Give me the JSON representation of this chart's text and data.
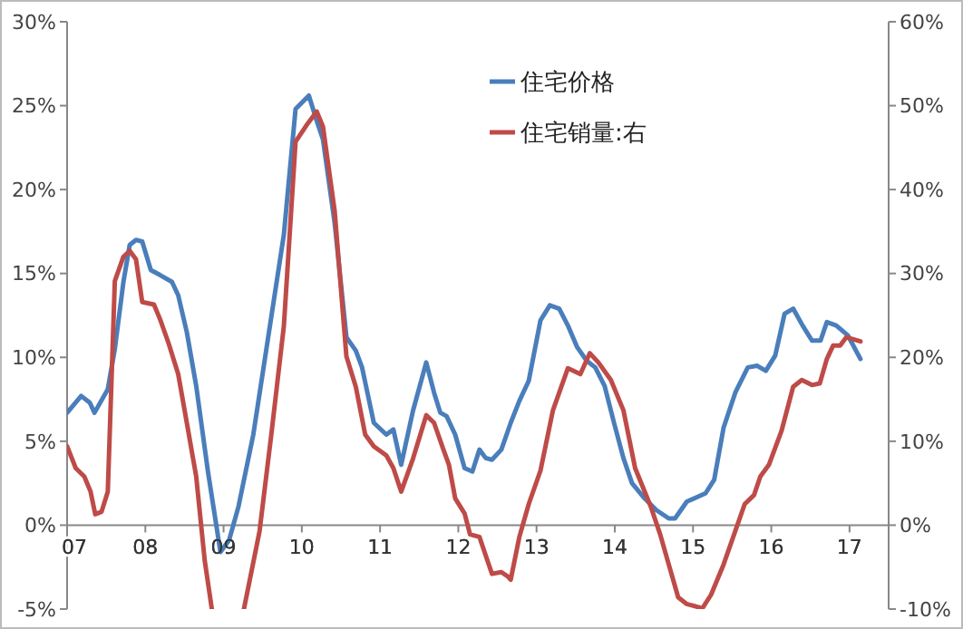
{
  "chart_data": {
    "type": "line",
    "xlim": [
      2007,
      2017.5
    ],
    "xticks": [
      {
        "value": 2007,
        "label": "07"
      },
      {
        "value": 2008,
        "label": "08"
      },
      {
        "value": 2009,
        "label": "09"
      },
      {
        "value": 2010,
        "label": "10"
      },
      {
        "value": 2011,
        "label": "11"
      },
      {
        "value": 2012,
        "label": "12"
      },
      {
        "value": 2013,
        "label": "13"
      },
      {
        "value": 2014,
        "label": "14"
      },
      {
        "value": 2015,
        "label": "15"
      },
      {
        "value": 2016,
        "label": "16"
      },
      {
        "value": 2017,
        "label": "17"
      }
    ],
    "ylim": [
      -5,
      30
    ],
    "yticks": [
      {
        "value": -5,
        "label": "-5%"
      },
      {
        "value": 0,
        "label": "0%"
      },
      {
        "value": 5,
        "label": "5%"
      },
      {
        "value": 10,
        "label": "10%"
      },
      {
        "value": 15,
        "label": "15%"
      },
      {
        "value": 20,
        "label": "20%"
      },
      {
        "value": 25,
        "label": "25%"
      },
      {
        "value": 30,
        "label": "30%"
      }
    ],
    "y2lim": [
      -10,
      60
    ],
    "y2ticks": [
      {
        "value": -10,
        "label": "-10%"
      },
      {
        "value": 0,
        "label": "0%"
      },
      {
        "value": 10,
        "label": "10%"
      },
      {
        "value": 20,
        "label": "20%"
      },
      {
        "value": 30,
        "label": "30%"
      },
      {
        "value": 40,
        "label": "40%"
      },
      {
        "value": 50,
        "label": "50%"
      },
      {
        "value": 60,
        "label": "60%"
      }
    ],
    "grid": false,
    "legend": "top right",
    "marker": "none",
    "line_style": "solid",
    "series": [
      {
        "name": "住宅价格",
        "color": "#4a7ebb",
        "x": [
          2007.0,
          2007.18,
          2007.29,
          2007.35,
          2007.52,
          2007.61,
          2007.72,
          2007.8,
          2007.88,
          2007.96,
          2008.07,
          2008.19,
          2008.34,
          2008.42,
          2008.53,
          2008.65,
          2008.8,
          2008.96,
          2009.07,
          2009.19,
          2009.38,
          2009.57,
          2009.77,
          2009.92,
          2010.09,
          2010.19,
          2010.27,
          2010.42,
          2010.57,
          2010.69,
          2010.77,
          2010.92,
          2011.08,
          2011.17,
          2011.27,
          2011.42,
          2011.59,
          2011.69,
          2011.77,
          2011.85,
          2011.96,
          2012.08,
          2012.18,
          2012.27,
          2012.35,
          2012.43,
          2012.55,
          2012.67,
          2012.78,
          2012.9,
          2013.05,
          2013.17,
          2013.29,
          2013.4,
          2013.52,
          2013.64,
          2013.75,
          2013.87,
          2013.99,
          2014.11,
          2014.22,
          2014.38,
          2014.53,
          2014.69,
          2014.77,
          2014.92,
          2015.16,
          2015.27,
          2015.39,
          2015.54,
          2015.7,
          2015.82,
          2015.93,
          2016.05,
          2016.17,
          2016.28,
          2016.4,
          2016.52,
          2016.63,
          2016.71,
          2016.83,
          2016.98,
          2017.14
        ],
        "values": [
          6.7,
          7.7,
          7.3,
          6.7,
          8.1,
          10.5,
          14.5,
          16.7,
          17.0,
          16.9,
          15.2,
          14.9,
          14.5,
          13.7,
          11.5,
          8.3,
          3.2,
          -1.6,
          -0.9,
          1.1,
          5.4,
          11.2,
          17.3,
          24.8,
          25.6,
          24.1,
          23.0,
          18.0,
          11.2,
          10.4,
          9.4,
          6.1,
          5.4,
          5.7,
          3.6,
          6.8,
          9.7,
          7.9,
          6.7,
          6.5,
          5.4,
          3.4,
          3.2,
          4.5,
          4.0,
          3.9,
          4.5,
          6.1,
          7.4,
          8.6,
          12.2,
          13.1,
          12.9,
          11.9,
          10.6,
          9.8,
          9.4,
          8.3,
          6.1,
          4.0,
          2.5,
          1.6,
          0.9,
          0.4,
          0.4,
          1.4,
          1.9,
          2.7,
          5.8,
          7.9,
          9.4,
          9.5,
          9.2,
          10.1,
          12.6,
          12.9,
          11.9,
          11.0,
          11.0,
          12.1,
          11.9,
          11.3,
          9.9
        ]
      },
      {
        "name": "住宅销量:右",
        "color": "#be4b48",
        "axis": "y2",
        "x": [
          2007.0,
          2007.11,
          2007.22,
          2007.3,
          2007.36,
          2007.44,
          2007.52,
          2007.61,
          2007.72,
          2007.8,
          2007.88,
          2007.96,
          2008.11,
          2008.19,
          2008.3,
          2008.42,
          2008.53,
          2008.65,
          2008.76,
          2008.85,
          2009.05,
          2009.26,
          2009.46,
          2009.61,
          2009.77,
          2009.92,
          2010.07,
          2010.19,
          2010.27,
          2010.42,
          2010.57,
          2010.69,
          2010.81,
          2010.92,
          2011.08,
          2011.17,
          2011.27,
          2011.42,
          2011.59,
          2011.69,
          2011.81,
          2011.88,
          2011.96,
          2012.08,
          2012.15,
          2012.27,
          2012.39,
          2012.43,
          2012.55,
          2012.63,
          2012.67,
          2012.78,
          2012.9,
          2013.05,
          2013.21,
          2013.4,
          2013.56,
          2013.68,
          2013.79,
          2013.95,
          2014.11,
          2014.26,
          2014.46,
          2014.58,
          2014.69,
          2014.81,
          2014.92,
          2015.12,
          2015.23,
          2015.39,
          2015.54,
          2015.66,
          2015.78,
          2015.86,
          2015.97,
          2016.13,
          2016.28,
          2016.39,
          2016.52,
          2016.62,
          2016.71,
          2016.79,
          2016.88,
          2016.96,
          2017.14
        ],
        "values": [
          9.4,
          6.8,
          5.8,
          4.0,
          1.3,
          1.6,
          4.0,
          29.1,
          32.0,
          32.7,
          31.7,
          26.6,
          26.3,
          24.5,
          21.6,
          18.0,
          12.2,
          5.8,
          -4.3,
          -10,
          null,
          -10,
          -0.7,
          10.8,
          23.7,
          45.7,
          47.8,
          49.3,
          47.5,
          37.4,
          20.1,
          16.5,
          10.8,
          9.4,
          8.3,
          6.8,
          4.0,
          7.9,
          13.1,
          12.2,
          9.0,
          7.2,
          3.2,
          1.4,
          -1.1,
          -1.4,
          -4.7,
          -5.8,
          -5.6,
          -6.1,
          -6.5,
          -1.4,
          2.5,
          6.5,
          13.7,
          18.7,
          18.0,
          20.5,
          19.4,
          17.3,
          13.7,
          6.8,
          2.2,
          -1.1,
          -4.7,
          -8.6,
          -9.4,
          -9.9,
          -8.3,
          -4.7,
          -0.7,
          2.5,
          3.6,
          5.8,
          7.2,
          11.2,
          16.5,
          17.3,
          16.7,
          16.9,
          19.8,
          21.4,
          21.4,
          22.4,
          21.9
        ]
      }
    ]
  }
}
